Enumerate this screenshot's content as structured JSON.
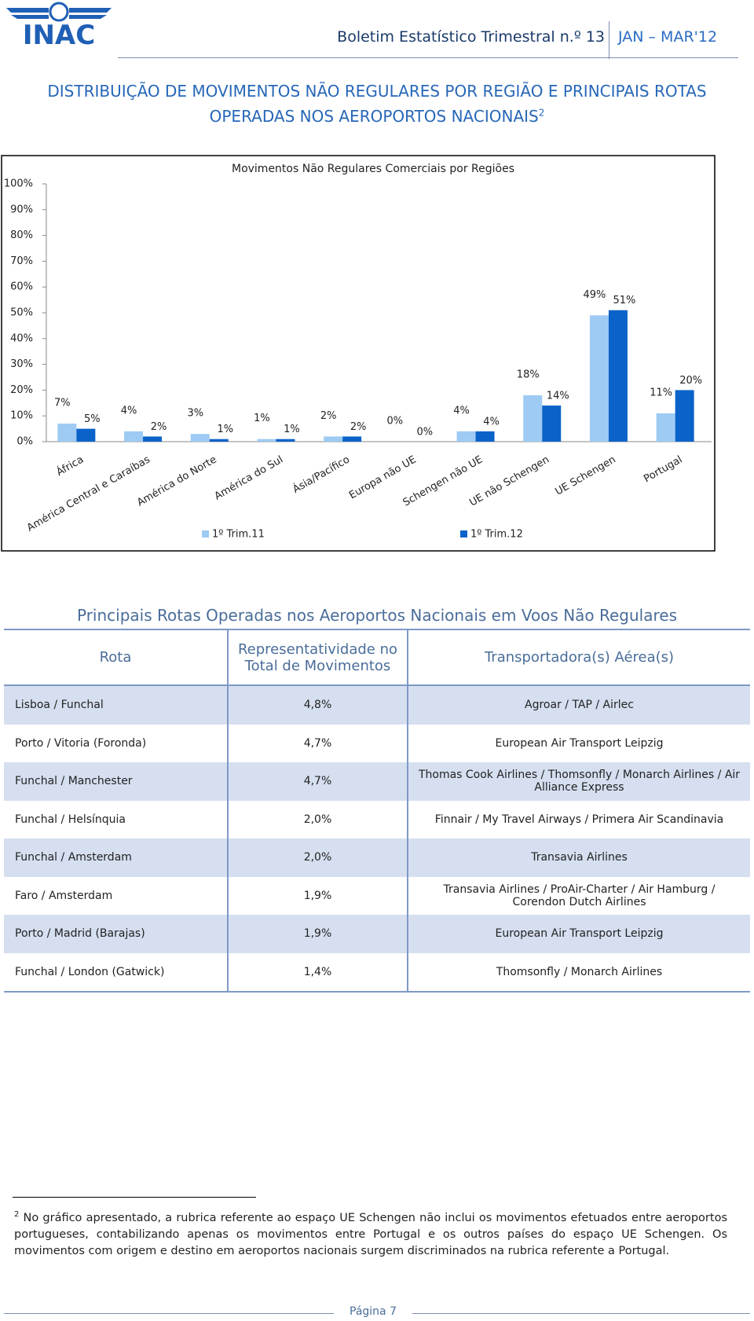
{
  "header": {
    "logo": "INAC",
    "title": "Boletim Estatístico Trimestral n.º 13",
    "period": "JAN – MAR'12"
  },
  "heading": {
    "lines": [
      "DISTRIBUIÇÃO DE MOVIMENTOS NÃO REGULARES POR REGIÃO E PRINCIPAIS ROTAS",
      "OPERADAS NOS AEROPORTOS NACIONAIS"
    ],
    "note_mark": "2"
  },
  "chart_data": {
    "type": "bar",
    "title": "Movimentos Não Regulares Comerciais por Regiões",
    "categories": [
      "África",
      "América Central e Caraíbas",
      "América do Norte",
      "América do Sul",
      "Ásia/Pacífico",
      "Europa não UE",
      "Schengen não UE",
      "UE não Schengen",
      "UE Schengen",
      "Portugal"
    ],
    "series": [
      {
        "name": "1º Trim.11",
        "color": "#9ecbf4",
        "values": [
          7,
          4,
          3,
          1,
          2,
          0,
          4,
          18,
          49,
          11
        ],
        "value_labels": [
          "7%",
          "4%",
          "3%",
          "1%",
          "2%",
          "0%",
          "4%",
          "18%",
          "49%",
          "11%"
        ]
      },
      {
        "name": "1º Trim.12",
        "color": "#0b63c9",
        "values": [
          5,
          2,
          1,
          1,
          2,
          0,
          4,
          14,
          51,
          20
        ],
        "value_labels": [
          "5%",
          "2%",
          "1%",
          "1%",
          "2%",
          "0%",
          "4%",
          "14%",
          "51%",
          "20%"
        ]
      }
    ],
    "ylim": [
      0,
      100
    ],
    "yticks": [
      {
        "value": 0,
        "label": "0%"
      },
      {
        "value": 10,
        "label": "10%"
      },
      {
        "value": 20,
        "label": "20%"
      },
      {
        "value": 30,
        "label": "30%"
      },
      {
        "value": 40,
        "label": "40%"
      },
      {
        "value": 50,
        "label": "50%"
      },
      {
        "value": 60,
        "label": "60%"
      },
      {
        "value": 70,
        "label": "70%"
      },
      {
        "value": 80,
        "label": "80%"
      },
      {
        "value": 90,
        "label": "90%"
      },
      {
        "value": 100,
        "label": "100%"
      }
    ],
    "grid": false,
    "legend": "bottom"
  },
  "table": {
    "title": "Principais Rotas Operadas nos Aeroportos Nacionais em Voos Não Regulares",
    "header": [
      "Rota",
      "Representatividade no Total de Movimentos",
      "Transportadora(s) Aérea(s)"
    ],
    "rows": [
      [
        "Lisboa / Funchal",
        "4,8%",
        "Agroar / TAP / Airlec"
      ],
      [
        "Porto / Vitoria (Foronda)",
        "4,7%",
        "European Air Transport Leipzig"
      ],
      [
        "Funchal / Manchester",
        "4,7%",
        "Thomas Cook Airlines / Thomsonfly / Monarch Airlines / Air Alliance Express"
      ],
      [
        "Funchal / Helsínquia",
        "2,0%",
        "Finnair / My Travel Airways / Primera Air Scandinavia"
      ],
      [
        "Funchal / Amsterdam",
        "2,0%",
        "Transavia Airlines"
      ],
      [
        "Faro / Amsterdam",
        "1,9%",
        "Transavia Airlines / ProAir-Charter / Air Hamburg / Corendon Dutch Airlines"
      ],
      [
        "Porto / Madrid (Barajas)",
        "1,9%",
        "European Air Transport Leipzig"
      ],
      [
        "Funchal / London (Gatwick)",
        "1,4%",
        "Thomsonfly / Monarch Airlines"
      ]
    ]
  },
  "footnote": {
    "mark": "2",
    "text": "No gráfico apresentado, a rubrica referente ao espaço UE Schengen não inclui os movimentos efetuados entre aeroportos portugueses, contabilizando apenas os movimentos entre Portugal e os outros países do espaço UE Schengen. Os movimentos com origem e destino em aeroportos nacionais surgem discriminados na rubrica referente a Portugal."
  },
  "footer": {
    "page": "Página 7"
  }
}
